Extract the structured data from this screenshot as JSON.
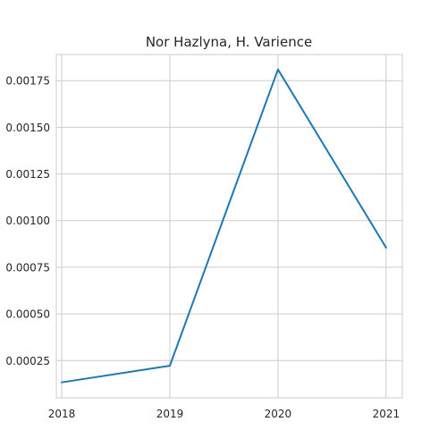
{
  "chart_data": {
    "type": "line",
    "title": "Nor Hazlyna, H. Varience",
    "xlabel": "",
    "ylabel": "",
    "x": [
      2018,
      2019,
      2020,
      2021
    ],
    "x_tick_labels": [
      "2018",
      "2019",
      "2020",
      "2021"
    ],
    "y_ticks": [
      0.00025,
      0.0005,
      0.00075,
      0.001,
      0.00125,
      0.0015,
      0.00175
    ],
    "y_tick_labels": [
      "0.00025",
      "0.00050",
      "0.00075",
      "0.00100",
      "0.00125",
      "0.00150",
      "0.00175"
    ],
    "xlim": [
      2017.95,
      2021.15
    ],
    "ylim": [
      5e-05,
      0.00189
    ],
    "grid": true,
    "series": [
      {
        "values": [
          0.000133,
          0.000222,
          0.00181,
          0.000855
        ],
        "color": "#1f77b4"
      }
    ]
  }
}
